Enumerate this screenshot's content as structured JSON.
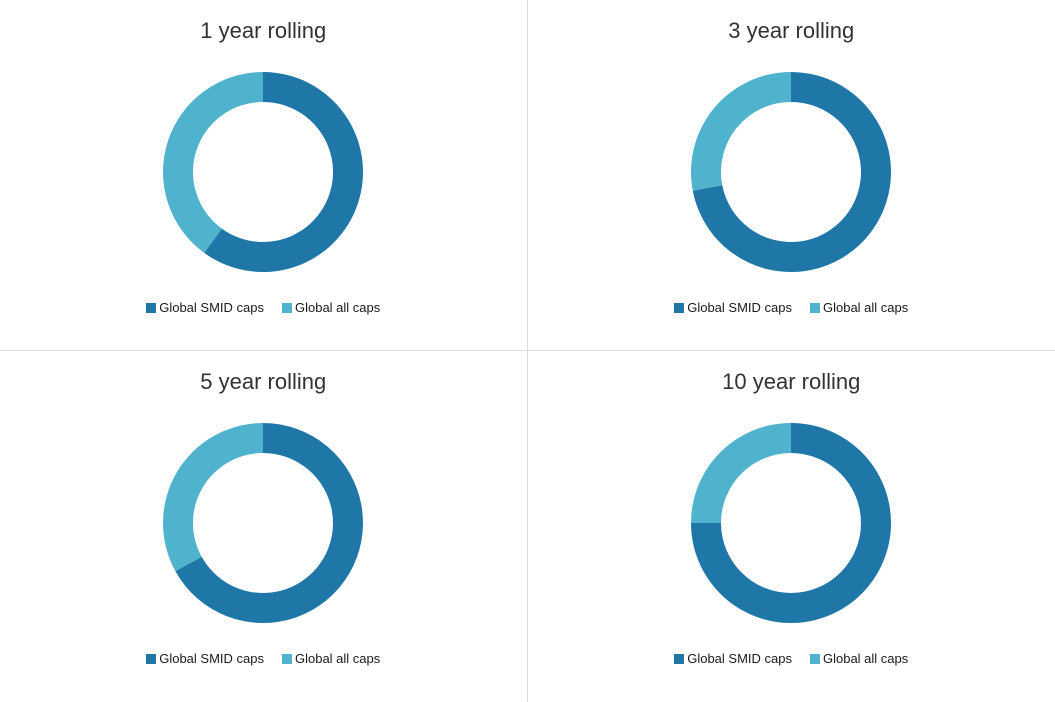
{
  "layout": {
    "grid": [
      2,
      2
    ],
    "divider_color": "#dddddd",
    "background_color": "#ffffff"
  },
  "legend_labels": {
    "series1": "Global SMID caps",
    "series2": "Global all caps"
  },
  "charts": [
    {
      "title": "1 year rolling",
      "type": "donut",
      "series": [
        {
          "label": "Global SMID caps",
          "value": 60,
          "color": "#1f77a8"
        },
        {
          "label": "Global all caps",
          "value": 40,
          "color": "#4fb3ce"
        }
      ],
      "donut_outer_radius": 100,
      "donut_inner_radius": 70,
      "title_fontsize": 22,
      "legend_fontsize": 13
    },
    {
      "title": "3 year rolling",
      "type": "donut",
      "series": [
        {
          "label": "Global SMID caps",
          "value": 72,
          "color": "#1f77a8"
        },
        {
          "label": "Global all caps",
          "value": 28,
          "color": "#4fb3ce"
        }
      ],
      "donut_outer_radius": 100,
      "donut_inner_radius": 70,
      "title_fontsize": 22,
      "legend_fontsize": 13
    },
    {
      "title": "5 year rolling",
      "type": "donut",
      "series": [
        {
          "label": "Global SMID caps",
          "value": 67,
          "color": "#1f77a8"
        },
        {
          "label": "Global all caps",
          "value": 33,
          "color": "#4fb3ce"
        }
      ],
      "donut_outer_radius": 100,
      "donut_inner_radius": 70,
      "title_fontsize": 22,
      "legend_fontsize": 13
    },
    {
      "title": "10 year rolling",
      "type": "donut",
      "series": [
        {
          "label": "Global SMID caps",
          "value": 75,
          "color": "#1f77a8"
        },
        {
          "label": "Global all caps",
          "value": 25,
          "color": "#4fb3ce"
        }
      ],
      "donut_outer_radius": 100,
      "donut_inner_radius": 70,
      "title_fontsize": 22,
      "legend_fontsize": 13
    }
  ]
}
